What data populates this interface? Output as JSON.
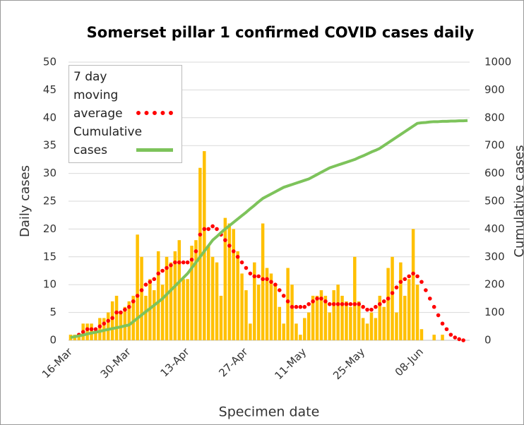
{
  "chart_data": {
    "type": "combo",
    "title": "Somerset pillar 1 confirmed COVID cases daily",
    "x_label": "Specimen date",
    "y_label": "Daily cases",
    "y2_label": "Cumulative cases",
    "categories": [
      "16-Mar",
      null,
      null,
      null,
      null,
      null,
      null,
      null,
      null,
      null,
      null,
      null,
      null,
      null,
      "30-Mar",
      null,
      null,
      null,
      null,
      null,
      null,
      null,
      null,
      null,
      null,
      null,
      null,
      null,
      "13-Apr",
      null,
      null,
      null,
      null,
      null,
      null,
      null,
      null,
      null,
      null,
      null,
      null,
      null,
      "27-Apr",
      null,
      null,
      null,
      null,
      null,
      null,
      null,
      null,
      null,
      null,
      null,
      null,
      null,
      "11-May",
      null,
      null,
      null,
      null,
      null,
      null,
      null,
      null,
      null,
      null,
      null,
      null,
      null,
      "25-May",
      null,
      null,
      null,
      null,
      null,
      null,
      null,
      null,
      null,
      null,
      null,
      null,
      null,
      "08-Jun",
      null,
      null,
      null,
      null,
      null,
      null,
      null,
      null,
      null,
      null,
      null
    ],
    "ylim": [
      0,
      50
    ],
    "yticks": [
      0,
      5,
      10,
      15,
      20,
      25,
      30,
      35,
      40,
      45,
      50
    ],
    "y2lim": [
      0,
      1000
    ],
    "y2ticks": [
      0,
      100,
      200,
      300,
      400,
      500,
      600,
      700,
      800,
      900,
      1000
    ],
    "grid": true,
    "legend": "top-left",
    "series": [
      {
        "type": "bar",
        "color": "#FFC000",
        "values": [
          1,
          1,
          1,
          3,
          3,
          3,
          2,
          4,
          4,
          5,
          7,
          8,
          5,
          6,
          7,
          8,
          19,
          15,
          8,
          11,
          9,
          16,
          10,
          15,
          14,
          16,
          18,
          11,
          11,
          17,
          18,
          31,
          34,
          17,
          15,
          14,
          8,
          22,
          21,
          20,
          16,
          12,
          9,
          3,
          14,
          10,
          21,
          13,
          12,
          10,
          6,
          3,
          13,
          10,
          3,
          1,
          4,
          5,
          8,
          8,
          9,
          8,
          5,
          9,
          10,
          8,
          7,
          6,
          15,
          7,
          4,
          3,
          5,
          4,
          8,
          6,
          13,
          15,
          5,
          14,
          8,
          11,
          20,
          10,
          2,
          0,
          0,
          1,
          0,
          1,
          0,
          0,
          0,
          0,
          0,
          0
        ]
      },
      {
        "type": "dots",
        "name": "7 day moving average",
        "color": "#FF0000",
        "values": [
          null,
          null,
          1,
          1.5,
          2,
          2,
          2,
          2.5,
          3,
          3.5,
          4,
          5,
          5,
          5.5,
          6,
          7,
          8,
          9,
          10,
          10.5,
          11,
          12,
          12.5,
          13,
          13.5,
          14,
          14,
          14,
          14,
          14.5,
          16,
          19,
          20,
          20,
          20.5,
          20,
          19,
          18,
          17,
          16,
          15,
          14,
          13,
          12,
          11.5,
          11.5,
          11,
          11,
          10.5,
          10,
          9,
          8,
          7,
          6,
          6,
          6,
          6,
          6.5,
          7,
          7.5,
          7.5,
          7,
          6.5,
          6.5,
          6.5,
          6.5,
          6.5,
          6.5,
          6.5,
          6.5,
          6,
          5.5,
          5.5,
          6,
          6.5,
          7,
          7.5,
          8.5,
          9.5,
          10.5,
          11,
          11.5,
          12,
          11.5,
          10.5,
          9,
          7.5,
          6,
          4.5,
          3,
          2,
          1,
          0.5,
          0.2,
          0,
          null
        ]
      },
      {
        "type": "line",
        "name": "Cumulative cases",
        "color": "#7DC35B",
        "axis": "y2",
        "values": [
          10,
          13,
          16,
          19,
          23,
          26,
          29,
          32,
          36,
          39,
          42,
          45,
          48,
          52,
          55,
          67,
          79,
          91,
          103,
          114,
          126,
          138,
          150,
          165,
          180,
          195,
          210,
          225,
          240,
          260,
          280,
          300,
          320,
          340,
          360,
          373,
          387,
          400,
          412,
          424,
          436,
          448,
          460,
          473,
          485,
          498,
          510,
          518,
          526,
          534,
          542,
          550,
          555,
          560,
          565,
          570,
          575,
          580,
          588,
          596,
          604,
          612,
          620,
          625,
          630,
          635,
          640,
          645,
          650,
          657,
          663,
          670,
          677,
          683,
          690,
          700,
          710,
          720,
          730,
          740,
          750,
          760,
          770,
          780,
          782,
          783,
          785,
          786,
          786,
          787,
          787,
          788,
          788,
          789,
          789,
          790
        ]
      }
    ]
  }
}
